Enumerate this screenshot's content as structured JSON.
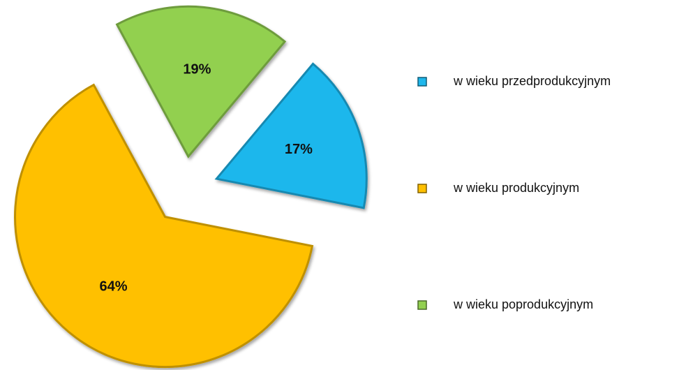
{
  "chart_data": {
    "type": "pie",
    "categories": [
      "w wieku przedprodukcyjnym",
      "w wieku produkcyjnym",
      "w wieku poprodukcyjnym"
    ],
    "values": [
      17,
      64,
      19
    ],
    "value_labels": [
      "17%",
      "64%",
      "19%"
    ],
    "colors": [
      "#1fb7ec",
      "#ffc000",
      "#92d050"
    ]
  }
}
